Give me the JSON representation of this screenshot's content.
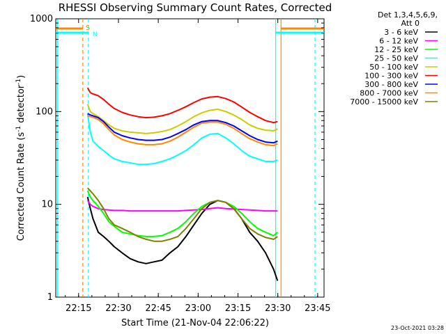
{
  "title": "RHESSI Observing Summary Count Rates, Corrected",
  "ylabel_main": "Corrected Count Rate (s",
  "ylabel_sup1": "-1",
  "ylabel_mid": " detector",
  "ylabel_sup2": "-1",
  "ylabel_end": ")",
  "xlabel": "Start Time (21-Nov-04 22:06:22)",
  "timestamp": "23-Oct-2021 03:28",
  "legend_header": [
    "Det 1,3,4,5,6,9,",
    "Att 0"
  ],
  "flags": [
    "S",
    "N"
  ],
  "chart_data": {
    "type": "line",
    "title": "RHESSI Observing Summary Count Rates, Corrected",
    "xlabel": "Start Time (21-Nov-04 22:06:22)",
    "ylabel": "Corrected Count Rate (s^-1 detector^-1)",
    "yscale": "log",
    "ylim": [
      1,
      1000
    ],
    "xlim_minutes_after_22:06:22": [
      0,
      101
    ],
    "x_ticks": [
      {
        "label": "22:15",
        "t": 8.6
      },
      {
        "label": "22:30",
        "t": 23.6
      },
      {
        "label": "22:45",
        "t": 38.6
      },
      {
        "label": "23:00",
        "t": 53.6
      },
      {
        "label": "23:15",
        "t": 68.6
      },
      {
        "label": "23:30",
        "t": 83.6
      },
      {
        "label": "23:45",
        "t": 98.6
      }
    ],
    "y_ticks": [
      {
        "label": "1",
        "v": 1
      },
      {
        "label": "10",
        "v": 10
      },
      {
        "label": "100",
        "v": 100
      },
      {
        "label": "1000",
        "v": 1000
      }
    ],
    "x": [
      12,
      13,
      14,
      16,
      18,
      20,
      22,
      25,
      28,
      31,
      34,
      37,
      40,
      43,
      46,
      49,
      52,
      55,
      58,
      61,
      64,
      67,
      70,
      73,
      76,
      79,
      82,
      83.5
    ],
    "series": [
      {
        "name": "3 - 6 keV",
        "color": "#000000",
        "values": [
          12,
          9,
          7,
          5,
          4.5,
          4,
          3.5,
          3,
          2.6,
          2.4,
          2.3,
          2.4,
          2.5,
          3,
          3.5,
          4.5,
          6,
          8,
          10,
          11,
          10.5,
          9,
          7,
          5,
          4,
          3,
          2,
          1.5
        ]
      },
      {
        "name": "6 - 12 keV",
        "color": "#ff00ff",
        "values": [
          11,
          10,
          9.5,
          9,
          8.8,
          8.7,
          8.6,
          8.6,
          8.5,
          8.5,
          8.5,
          8.5,
          8.5,
          8.5,
          8.5,
          8.6,
          8.7,
          8.8,
          9,
          9.2,
          9,
          8.9,
          8.8,
          8.7,
          8.6,
          8.5,
          8.5,
          8.5
        ]
      },
      {
        "name": "12 - 25 keV",
        "color": "#00ff00",
        "values": [
          14,
          12,
          11,
          9.5,
          8,
          6.5,
          5.8,
          5,
          4.8,
          4.6,
          4.5,
          4.5,
          4.6,
          5,
          5.5,
          6.5,
          8,
          9.5,
          10.5,
          11,
          10.5,
          9.5,
          8,
          6.5,
          5.5,
          5,
          4.6,
          5
        ]
      },
      {
        "name": "25 - 50 keV",
        "color": "#00ffff",
        "values": [
          95,
          60,
          48,
          42,
          38,
          34,
          31,
          29,
          28,
          27,
          27,
          27.5,
          29,
          31,
          34,
          38,
          44,
          52,
          57,
          58,
          52,
          45,
          38,
          33,
          31,
          29,
          29,
          30
        ]
      },
      {
        "name": "50 - 100 keV",
        "color": "#cccc00",
        "values": [
          120,
          100,
          95,
          88,
          80,
          72,
          66,
          62,
          60,
          59,
          58,
          59,
          61,
          64,
          70,
          78,
          88,
          97,
          103,
          106,
          100,
          92,
          82,
          72,
          66,
          63,
          62,
          65
        ]
      },
      {
        "name": "100 - 300 keV",
        "color": "#ff0000",
        "values": [
          180,
          160,
          155,
          148,
          135,
          120,
          108,
          98,
          92,
          88,
          86,
          87,
          90,
          95,
          103,
          113,
          125,
          137,
          143,
          145,
          138,
          127,
          112,
          98,
          88,
          80,
          76,
          78
        ]
      },
      {
        "name": "300 - 800 keV",
        "color": "#0000ff",
        "values": [
          95,
          92,
          90,
          86,
          78,
          68,
          60,
          55,
          52,
          50,
          49,
          49,
          50,
          53,
          58,
          64,
          72,
          78,
          80,
          80,
          76,
          70,
          62,
          55,
          50,
          47,
          46,
          48
        ]
      },
      {
        "name": "800 - 7000 keV",
        "color": "#ff8800",
        "values": [
          90,
          88,
          87,
          82,
          74,
          64,
          56,
          50,
          47,
          45,
          44,
          44,
          45,
          48,
          53,
          60,
          68,
          75,
          77,
          77,
          73,
          66,
          58,
          51,
          47,
          44,
          43,
          45
        ]
      },
      {
        "name": "7000 - 15000 keV",
        "color": "#808000",
        "values": [
          15,
          14,
          13,
          11,
          9,
          7,
          6,
          5.5,
          5,
          4.5,
          4.2,
          4,
          4,
          4.2,
          4.5,
          5.5,
          7,
          9,
          10.5,
          11,
          10.5,
          9,
          7,
          5.5,
          4.8,
          4.4,
          4.2,
          4.5
        ]
      }
    ],
    "legend_placement": "top-right",
    "grid": false,
    "vertical_markers": [
      {
        "t": 0.6,
        "color": "#00ffff",
        "style": "solid"
      },
      {
        "t": 10.2,
        "color": "#ff8800",
        "style": "dashed"
      },
      {
        "t": 12.3,
        "color": "#00ffff",
        "style": "dashed"
      },
      {
        "t": 82.8,
        "color": "#00ffff",
        "style": "solid"
      },
      {
        "t": 84.8,
        "color": "#ff8800",
        "style": "solid"
      },
      {
        "t": 97.6,
        "color": "#00ffff",
        "style": "dashed"
      }
    ]
  }
}
